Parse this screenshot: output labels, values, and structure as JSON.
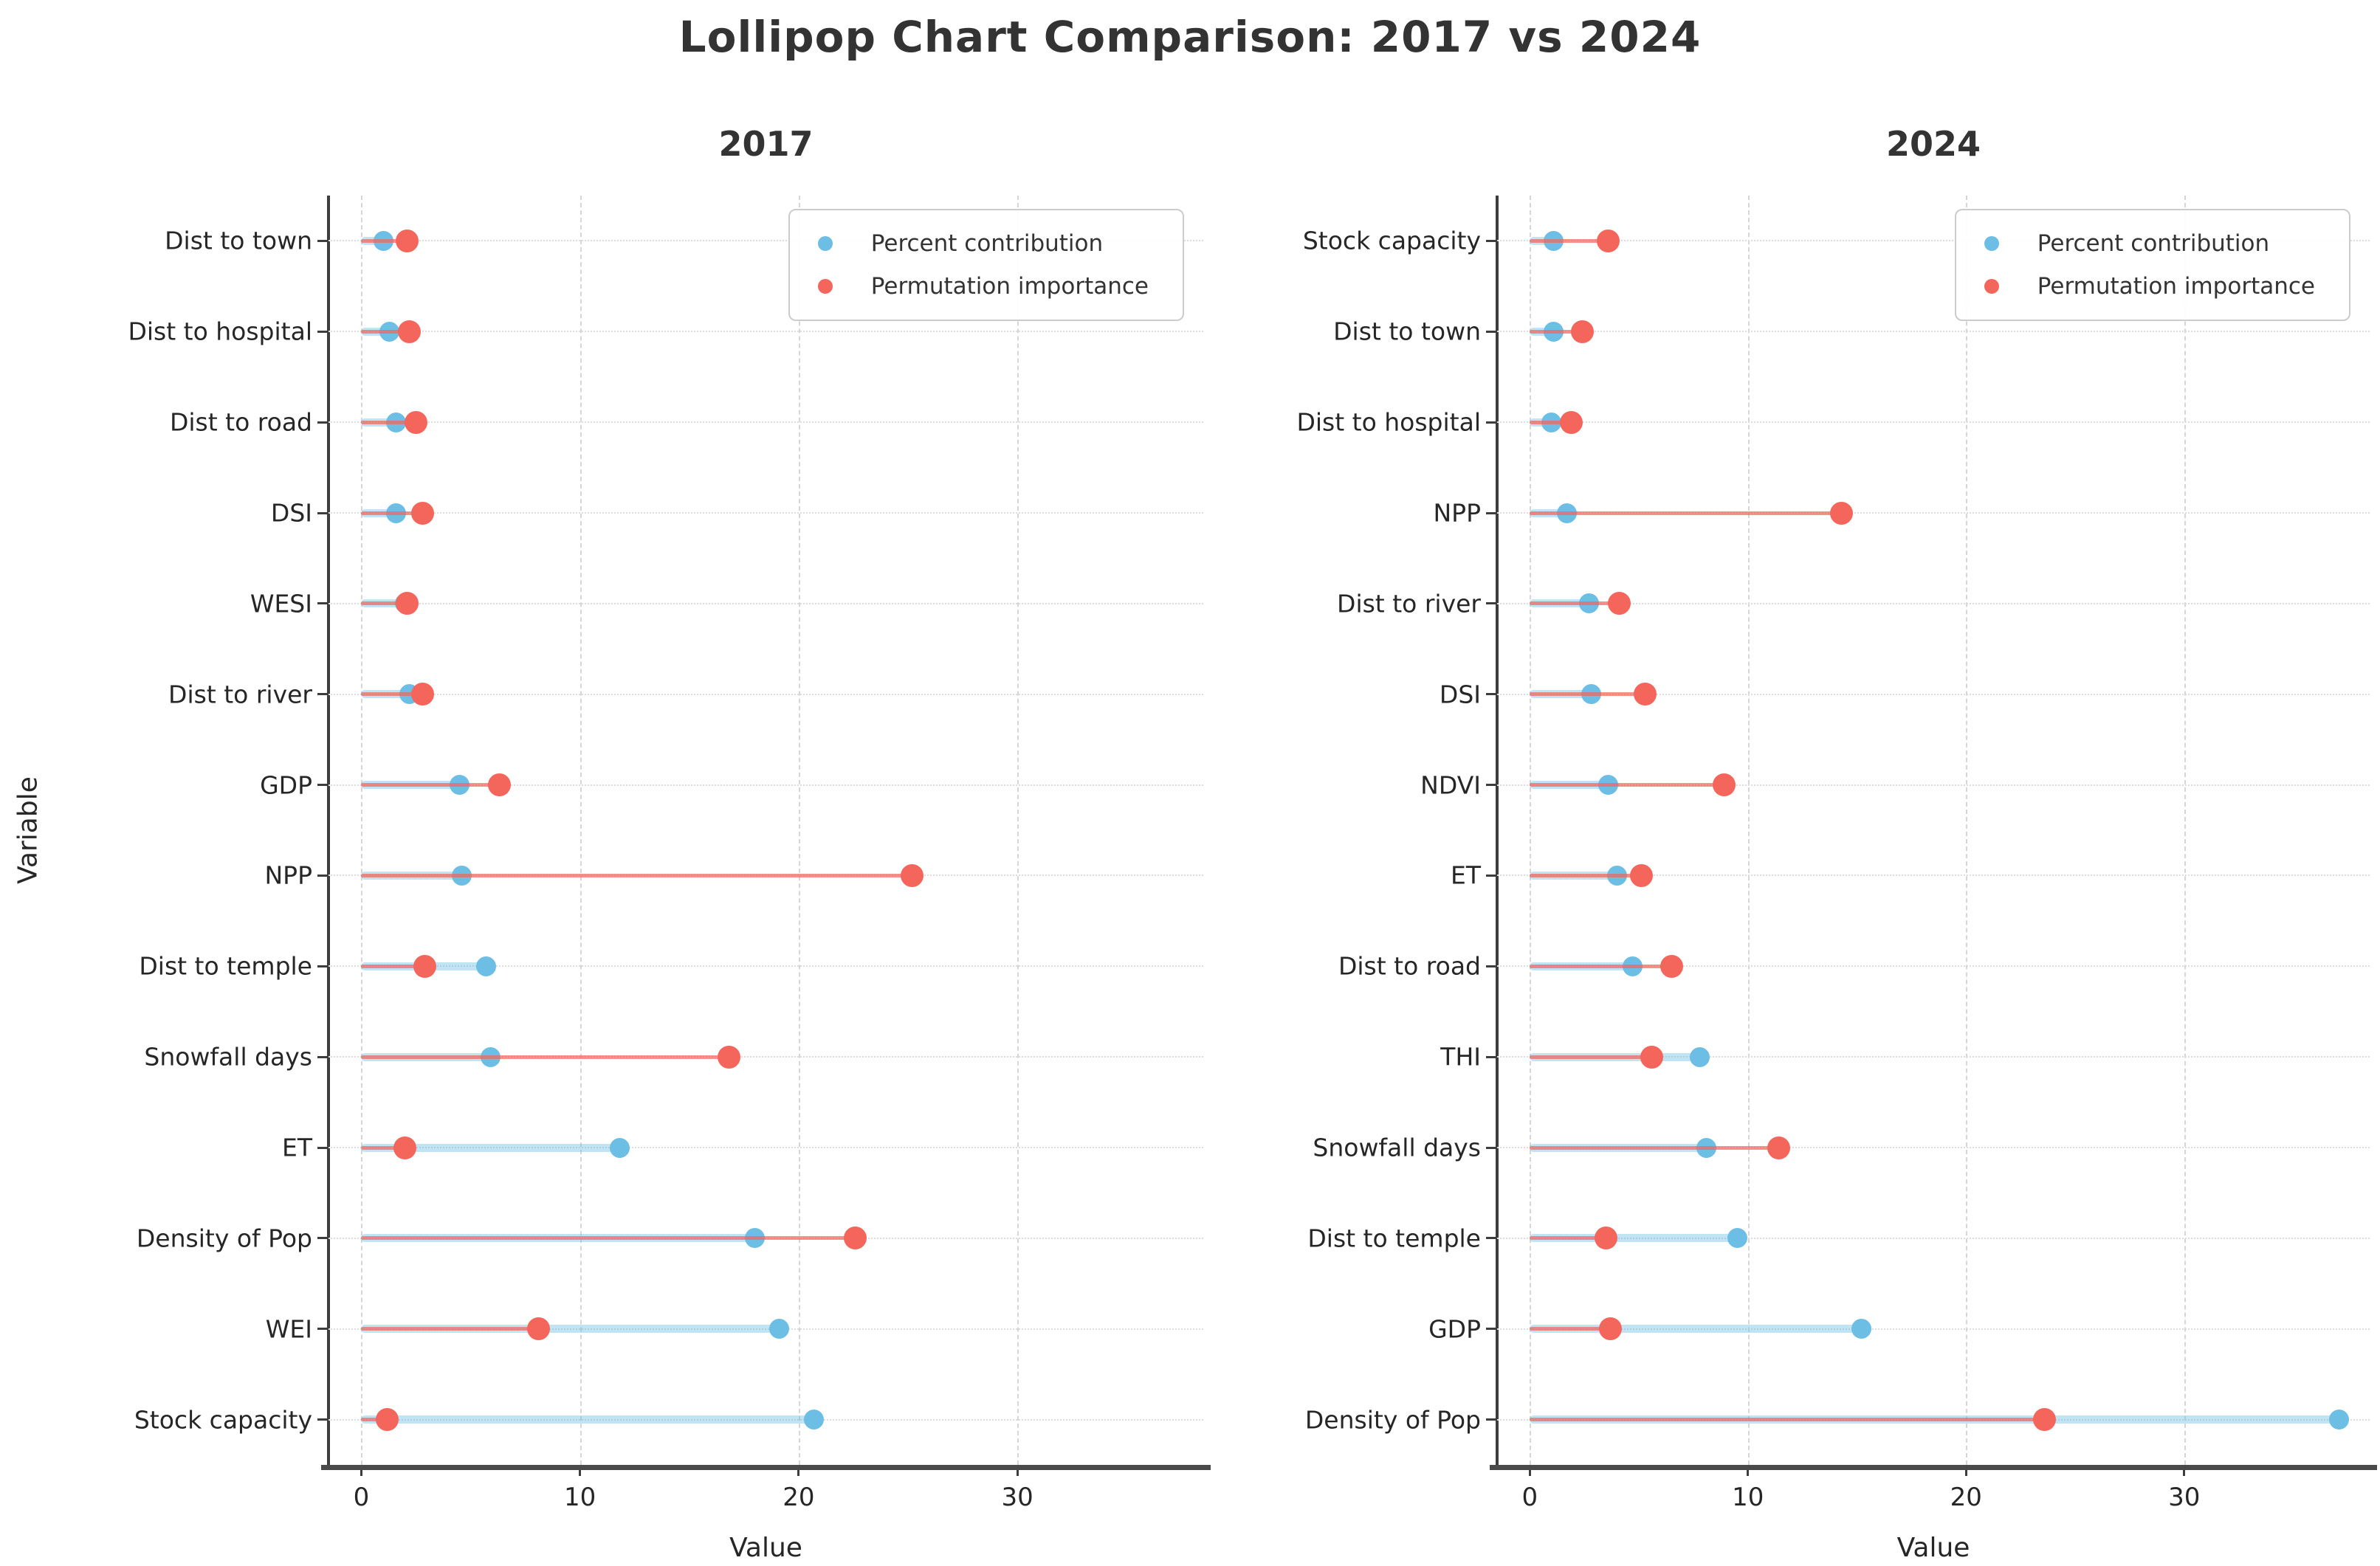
{
  "page_title": "Lollipop Chart Comparison: 2017 vs 2024",
  "colors": {
    "percent_contribution": "#6CBEE4",
    "permutation_importance": "#F4655C",
    "grid": "#d6d6d6",
    "spine": "#3d3d3d",
    "title_text": "#333333"
  },
  "legend": {
    "percent_label": "Percent contribution",
    "importance_label": "Permutation importance",
    "position": "upper right"
  },
  "chart_data": [
    {
      "type": "lollipop",
      "title": "2017",
      "xlabel": "Value",
      "ylabel": "Variable",
      "xlim": [
        -1.5,
        38.5
      ],
      "xticks": [
        0,
        10,
        20,
        30
      ],
      "grid": true,
      "categories": [
        "Dist to town",
        "Dist to hospital",
        "Dist to road",
        "DSI",
        "WESI",
        "Dist to river",
        "GDP",
        "NPP",
        "Dist to temple",
        "Snowfall days",
        "ET",
        "Density of Pop",
        "WEI",
        "Stock capacity"
      ],
      "series": [
        {
          "name": "Percent contribution",
          "values": [
            1.0,
            1.3,
            1.6,
            1.6,
            2.0,
            2.2,
            4.5,
            4.6,
            5.7,
            5.9,
            11.8,
            18.0,
            19.1,
            20.7
          ]
        },
        {
          "name": "Permutation importance",
          "values": [
            2.1,
            2.2,
            2.5,
            2.8,
            2.1,
            2.8,
            6.3,
            25.2,
            2.9,
            16.8,
            2.0,
            22.6,
            8.1,
            1.2
          ]
        }
      ]
    },
    {
      "type": "lollipop",
      "title": "2024",
      "xlabel": "Value",
      "ylabel": "",
      "xlim": [
        -1.5,
        38.5
      ],
      "xticks": [
        0,
        10,
        20,
        30
      ],
      "grid": true,
      "categories": [
        "Stock capacity",
        "Dist to town",
        "Dist to hospital",
        "NPP",
        "Dist to river",
        "DSI",
        "NDVI",
        "ET",
        "Dist to road",
        "THI",
        "Snowfall days",
        "Dist to temple",
        "GDP",
        "Density of Pop"
      ],
      "series": [
        {
          "name": "Percent contribution",
          "values": [
            1.1,
            1.1,
            1.0,
            1.7,
            2.7,
            2.8,
            3.6,
            4.0,
            4.7,
            7.8,
            8.1,
            9.5,
            15.2,
            37.1
          ]
        },
        {
          "name": "Permutation importance",
          "values": [
            3.6,
            2.4,
            1.9,
            14.3,
            4.1,
            5.3,
            8.9,
            5.1,
            6.5,
            5.6,
            11.4,
            3.5,
            3.7,
            23.6
          ]
        }
      ]
    }
  ]
}
